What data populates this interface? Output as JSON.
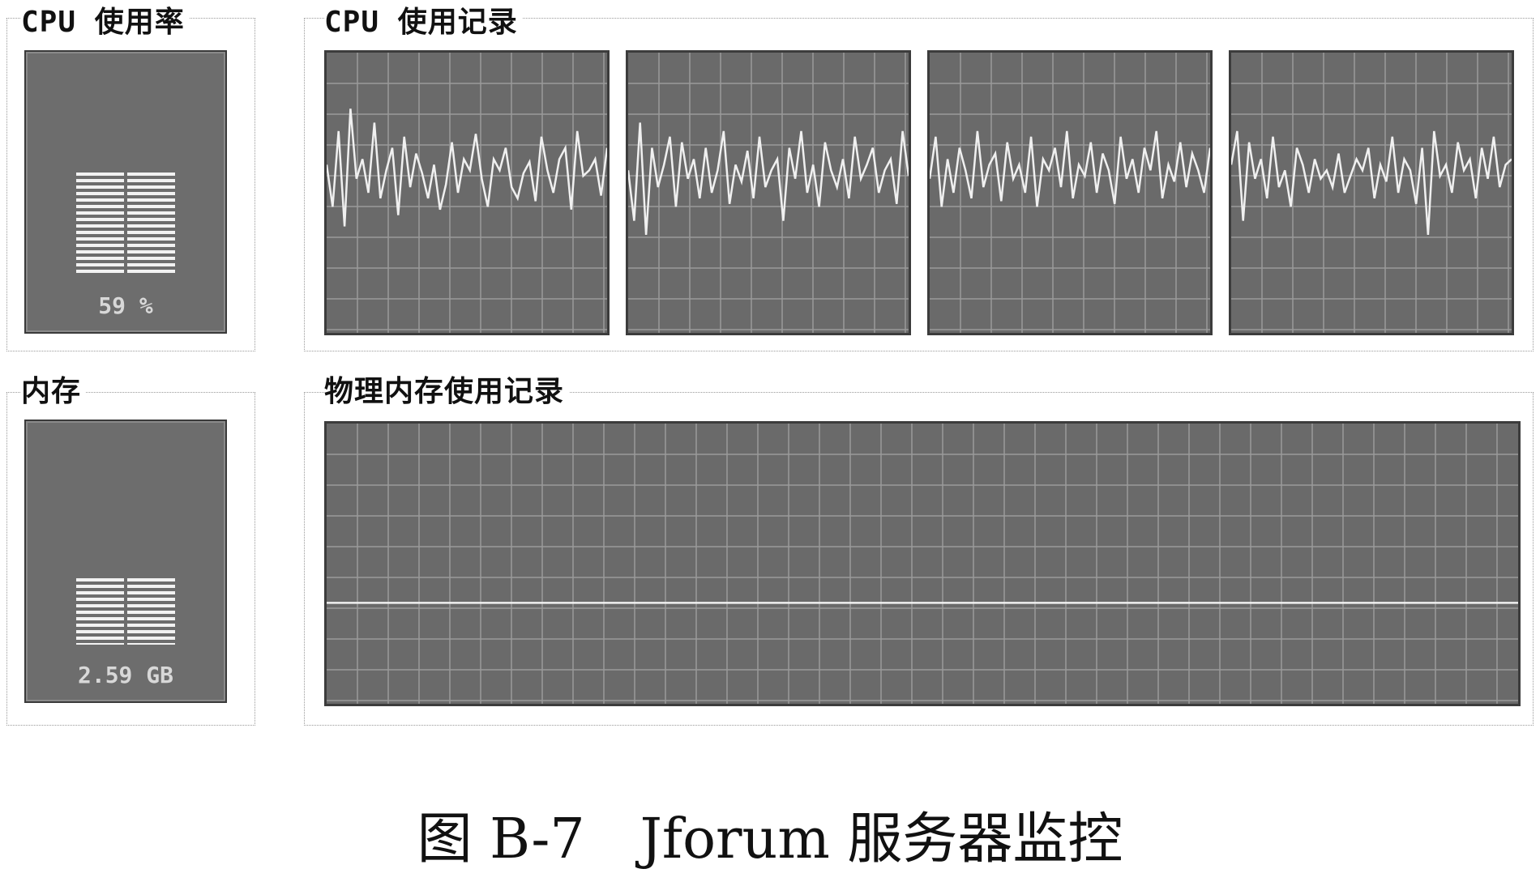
{
  "cpu_usage": {
    "title": "CPU 使用率",
    "value_text": "59 %",
    "level": 0.59
  },
  "cpu_history": {
    "title": "CPU 使用记录",
    "graphs": [
      {
        "name": "cpu-graph-1",
        "values": [
          60,
          45,
          72,
          38,
          80,
          55,
          62,
          50,
          75,
          48,
          58,
          66,
          42,
          70,
          52,
          64,
          57,
          48,
          60,
          44,
          53,
          68,
          50,
          62,
          58,
          71,
          55,
          45,
          62,
          58,
          66,
          52,
          48,
          57,
          61,
          47,
          70,
          58,
          50,
          62,
          66,
          44,
          72,
          56,
          58,
          62,
          49,
          66
        ]
      },
      {
        "name": "cpu-graph-2",
        "values": [
          58,
          40,
          75,
          35,
          66,
          52,
          60,
          70,
          45,
          68,
          55,
          62,
          48,
          66,
          50,
          58,
          72,
          46,
          60,
          54,
          65,
          48,
          70,
          52,
          58,
          62,
          40,
          66,
          55,
          72,
          50,
          60,
          45,
          68,
          58,
          52,
          62,
          48,
          70,
          55,
          60,
          66,
          50,
          58,
          62,
          46,
          72,
          56
        ]
      },
      {
        "name": "cpu-graph-3",
        "values": [
          55,
          70,
          45,
          62,
          50,
          66,
          58,
          48,
          72,
          52,
          60,
          64,
          47,
          68,
          55,
          60,
          50,
          70,
          45,
          62,
          58,
          66,
          52,
          72,
          48,
          60,
          56,
          68,
          50,
          64,
          58,
          46,
          70,
          55,
          62,
          50,
          66,
          58,
          72,
          48,
          60,
          54,
          68,
          52,
          64,
          58,
          50,
          66
        ]
      },
      {
        "name": "cpu-graph-4",
        "values": [
          60,
          72,
          40,
          68,
          55,
          62,
          48,
          70,
          52,
          58,
          45,
          66,
          60,
          50,
          62,
          55,
          58,
          52,
          64,
          50,
          56,
          62,
          58,
          66,
          48,
          60,
          54,
          70,
          50,
          62,
          58,
          46,
          66,
          35,
          72,
          56,
          60,
          50,
          68,
          58,
          62,
          48,
          66,
          55,
          70,
          52,
          60,
          62
        ]
      }
    ]
  },
  "memory": {
    "title": "内存",
    "value_text": "2.59 GB",
    "level": 0.38
  },
  "memory_history": {
    "title": "物理内存使用记录",
    "values": [
      36,
      36,
      36,
      36,
      36,
      36,
      36,
      36,
      36,
      36,
      36,
      36,
      36,
      36,
      36,
      36,
      36,
      36,
      36,
      36,
      36,
      36,
      36,
      36,
      36,
      36,
      36,
      36,
      36,
      36
    ]
  },
  "figure_caption": "图 B-7　Jforum 服务器监控"
}
